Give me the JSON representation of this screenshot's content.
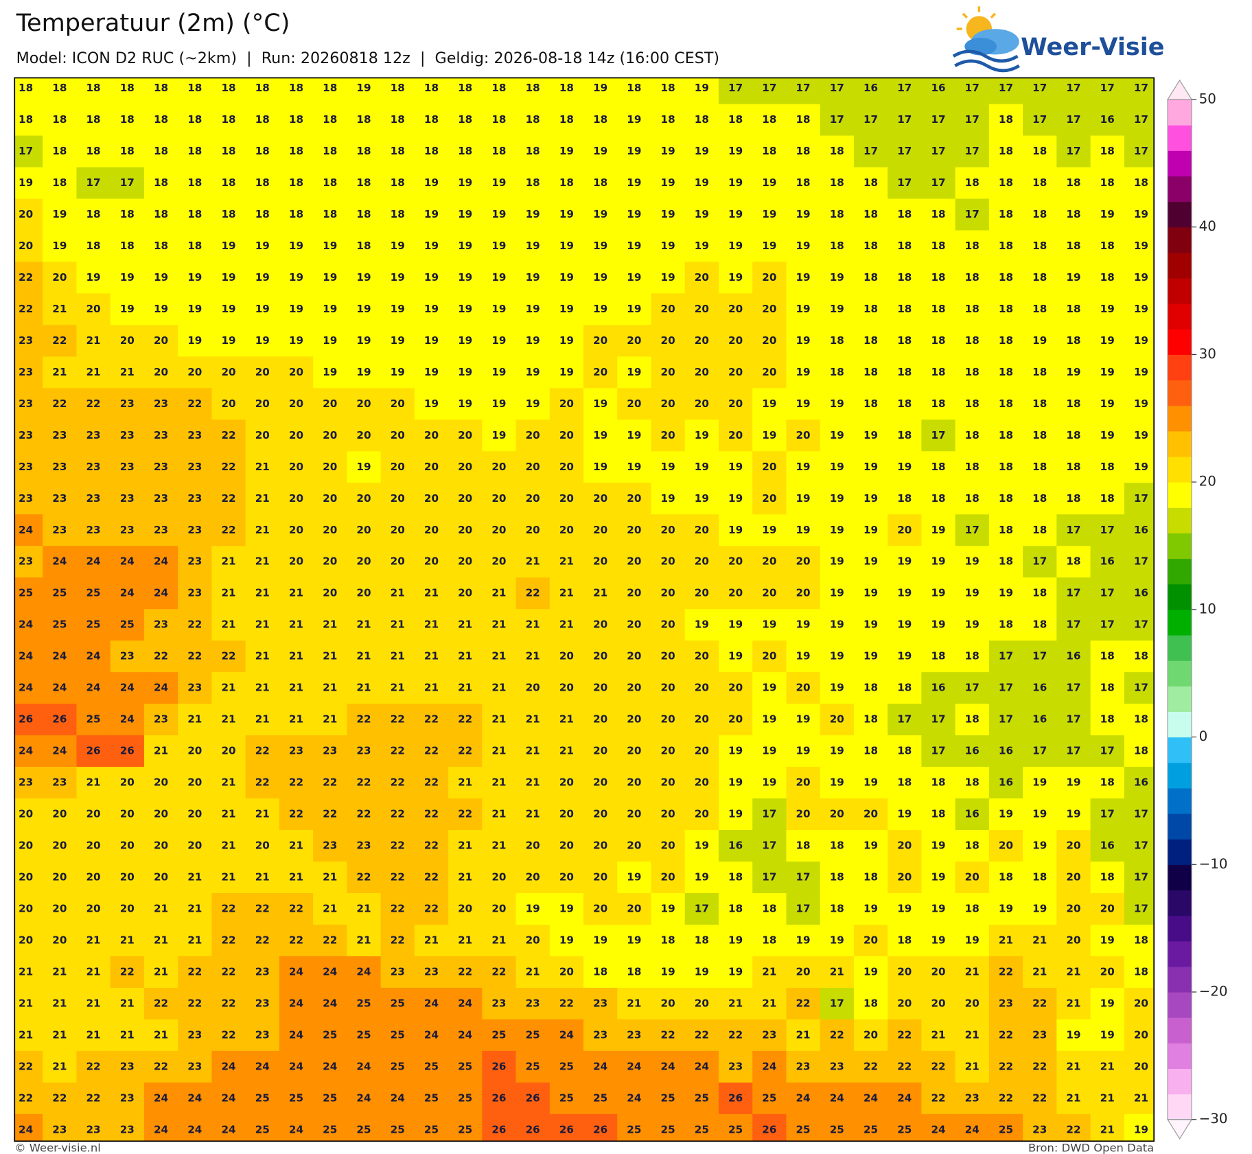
{
  "header": {
    "title": "Temperatuur (2m) (°C)",
    "subtitle": "Model: ICON D2 RUC (~2km)  |  Run: 20260818 12z  |  Geldig: 2026-08-18 14z (16:00 CEST)",
    "logo": "Weer-Visie"
  },
  "footer": {
    "left": "© Weer-visie.nl",
    "right": "Bron: DWD Open Data"
  },
  "colorbar": {
    "lim": [
      -30,
      50
    ],
    "ticks": [
      50,
      40,
      30,
      20,
      10,
      0,
      {
        "value": -10,
        "label": "−10"
      },
      {
        "value": -20,
        "label": "−20"
      },
      {
        "value": -30,
        "label": "−30"
      }
    ],
    "colors": [
      "#ffd8f6",
      "#f8b0ee",
      "#e080e0",
      "#c860d0",
      "#a848c0",
      "#8830b0",
      "#6a1aa0",
      "#480c88",
      "#2a0868",
      "#100048",
      "#002080",
      "#0048a8",
      "#0070c8",
      "#00a0e0",
      "#30c0f8",
      "#c8fcec",
      "#a0eca0",
      "#70d870",
      "#40c050",
      "#00b000",
      "#009000",
      "#30a800",
      "#80c800",
      "#c8dc00",
      "#ffff00",
      "#ffe000",
      "#ffc000",
      "#ff9000",
      "#ff6010",
      "#ff4010",
      "#ff0000",
      "#e00000",
      "#c00000",
      "#a00000",
      "#800010",
      "#500030",
      "#8a0068",
      "#c000b0",
      "#ff50e0",
      "#ffa8e0"
    ]
  },
  "grid": [
    [
      18,
      18,
      18,
      18,
      18,
      18,
      18,
      18,
      18,
      18,
      19,
      18,
      18,
      18,
      18,
      18,
      18,
      19,
      18,
      18,
      19,
      17,
      17,
      17,
      17,
      16,
      17,
      16,
      17,
      17,
      17,
      17,
      17,
      17
    ],
    [
      18,
      18,
      18,
      18,
      18,
      18,
      18,
      18,
      18,
      18,
      18,
      18,
      18,
      18,
      18,
      18,
      18,
      18,
      19,
      18,
      18,
      18,
      18,
      18,
      17,
      17,
      17,
      17,
      17,
      18,
      17,
      17,
      16,
      17
    ],
    [
      17,
      18,
      18,
      18,
      18,
      18,
      18,
      18,
      18,
      18,
      18,
      18,
      18,
      18,
      18,
      18,
      19,
      19,
      19,
      19,
      19,
      19,
      18,
      18,
      18,
      17,
      17,
      17,
      17,
      18,
      18,
      17,
      18,
      17
    ],
    [
      19,
      18,
      17,
      17,
      18,
      18,
      18,
      18,
      18,
      18,
      18,
      18,
      19,
      19,
      19,
      18,
      18,
      18,
      19,
      19,
      19,
      19,
      19,
      18,
      18,
      18,
      17,
      17,
      18,
      18,
      18,
      18,
      18,
      18
    ],
    [
      20,
      19,
      18,
      18,
      18,
      18,
      18,
      18,
      18,
      18,
      18,
      18,
      19,
      19,
      19,
      19,
      19,
      19,
      19,
      19,
      19,
      19,
      19,
      19,
      18,
      18,
      18,
      18,
      17,
      18,
      18,
      18,
      19,
      19
    ],
    [
      20,
      19,
      18,
      18,
      18,
      18,
      19,
      19,
      19,
      19,
      18,
      19,
      19,
      19,
      19,
      19,
      19,
      19,
      19,
      19,
      19,
      19,
      19,
      19,
      18,
      18,
      18,
      18,
      18,
      18,
      18,
      18,
      18,
      19
    ],
    [
      22,
      20,
      19,
      19,
      19,
      19,
      19,
      19,
      19,
      19,
      19,
      19,
      19,
      19,
      19,
      19,
      19,
      19,
      19,
      19,
      20,
      19,
      20,
      19,
      19,
      18,
      18,
      18,
      18,
      18,
      18,
      19,
      18,
      19
    ],
    [
      22,
      21,
      20,
      19,
      19,
      19,
      19,
      19,
      19,
      19,
      19,
      19,
      19,
      19,
      19,
      19,
      19,
      19,
      19,
      20,
      20,
      20,
      20,
      19,
      19,
      18,
      18,
      18,
      18,
      18,
      18,
      18,
      19,
      19
    ],
    [
      23,
      22,
      21,
      20,
      20,
      19,
      19,
      19,
      19,
      19,
      19,
      19,
      19,
      19,
      19,
      19,
      19,
      20,
      20,
      20,
      20,
      20,
      20,
      19,
      18,
      18,
      18,
      18,
      18,
      18,
      19,
      18,
      19,
      19
    ],
    [
      23,
      21,
      21,
      21,
      20,
      20,
      20,
      20,
      20,
      19,
      19,
      19,
      19,
      19,
      19,
      19,
      19,
      20,
      19,
      20,
      20,
      20,
      20,
      19,
      18,
      18,
      18,
      18,
      18,
      18,
      18,
      19,
      19,
      19
    ],
    [
      23,
      22,
      22,
      23,
      23,
      22,
      20,
      20,
      20,
      20,
      20,
      20,
      19,
      19,
      19,
      19,
      20,
      19,
      20,
      20,
      20,
      20,
      19,
      19,
      19,
      18,
      18,
      18,
      18,
      18,
      18,
      18,
      19,
      19
    ],
    [
      23,
      23,
      23,
      23,
      23,
      23,
      22,
      20,
      20,
      20,
      20,
      20,
      20,
      20,
      19,
      20,
      20,
      19,
      19,
      20,
      19,
      20,
      19,
      20,
      19,
      19,
      18,
      17,
      18,
      18,
      18,
      18,
      19,
      19
    ],
    [
      23,
      23,
      23,
      23,
      23,
      23,
      22,
      21,
      20,
      20,
      19,
      20,
      20,
      20,
      20,
      20,
      20,
      19,
      19,
      19,
      19,
      19,
      20,
      19,
      19,
      19,
      19,
      18,
      18,
      18,
      18,
      18,
      18,
      19
    ],
    [
      23,
      23,
      23,
      23,
      23,
      23,
      22,
      21,
      20,
      20,
      20,
      20,
      20,
      20,
      20,
      20,
      20,
      20,
      20,
      19,
      19,
      19,
      20,
      19,
      19,
      19,
      18,
      18,
      18,
      18,
      18,
      18,
      18,
      17
    ],
    [
      24,
      23,
      23,
      23,
      23,
      23,
      22,
      21,
      20,
      20,
      20,
      20,
      20,
      20,
      20,
      20,
      20,
      20,
      20,
      20,
      20,
      19,
      19,
      19,
      19,
      19,
      20,
      19,
      17,
      18,
      18,
      17,
      17,
      16
    ],
    [
      23,
      24,
      24,
      24,
      24,
      23,
      21,
      21,
      20,
      20,
      20,
      20,
      20,
      20,
      20,
      21,
      21,
      20,
      20,
      20,
      20,
      20,
      20,
      20,
      19,
      19,
      19,
      19,
      19,
      18,
      17,
      18,
      16,
      17
    ],
    [
      25,
      25,
      25,
      24,
      24,
      23,
      21,
      21,
      21,
      20,
      20,
      21,
      21,
      20,
      21,
      22,
      21,
      21,
      20,
      20,
      20,
      20,
      20,
      20,
      19,
      19,
      19,
      19,
      19,
      19,
      18,
      17,
      17,
      16
    ],
    [
      24,
      25,
      25,
      25,
      23,
      22,
      21,
      21,
      21,
      21,
      21,
      21,
      21,
      21,
      21,
      21,
      21,
      20,
      20,
      20,
      19,
      19,
      19,
      19,
      19,
      19,
      19,
      19,
      19,
      18,
      18,
      17,
      17,
      17
    ],
    [
      24,
      24,
      24,
      23,
      22,
      22,
      22,
      21,
      21,
      21,
      21,
      21,
      21,
      21,
      21,
      21,
      20,
      20,
      20,
      20,
      20,
      19,
      20,
      19,
      19,
      19,
      19,
      18,
      18,
      17,
      17,
      16,
      18,
      18
    ],
    [
      24,
      24,
      24,
      24,
      24,
      23,
      21,
      21,
      21,
      21,
      21,
      21,
      21,
      21,
      21,
      20,
      20,
      20,
      20,
      20,
      20,
      20,
      19,
      20,
      19,
      18,
      18,
      16,
      17,
      17,
      16,
      17,
      18,
      17
    ],
    [
      26,
      26,
      25,
      24,
      23,
      21,
      21,
      21,
      21,
      21,
      22,
      22,
      22,
      22,
      21,
      21,
      21,
      20,
      20,
      20,
      20,
      20,
      19,
      19,
      20,
      18,
      17,
      17,
      18,
      17,
      16,
      17,
      18,
      18
    ],
    [
      24,
      24,
      26,
      26,
      21,
      20,
      20,
      22,
      23,
      23,
      23,
      22,
      22,
      22,
      21,
      21,
      21,
      20,
      20,
      20,
      20,
      19,
      19,
      19,
      19,
      18,
      18,
      17,
      16,
      16,
      17,
      17,
      17,
      18
    ],
    [
      23,
      23,
      21,
      20,
      20,
      20,
      21,
      22,
      22,
      22,
      22,
      22,
      22,
      21,
      21,
      21,
      20,
      20,
      20,
      20,
      20,
      19,
      19,
      20,
      19,
      19,
      18,
      18,
      18,
      16,
      19,
      19,
      18,
      16
    ],
    [
      20,
      20,
      20,
      20,
      20,
      20,
      21,
      21,
      22,
      22,
      22,
      22,
      22,
      22,
      21,
      21,
      20,
      20,
      20,
      20,
      20,
      19,
      17,
      20,
      20,
      20,
      19,
      18,
      16,
      19,
      19,
      19,
      17,
      17
    ],
    [
      20,
      20,
      20,
      20,
      20,
      20,
      21,
      20,
      21,
      23,
      23,
      22,
      22,
      21,
      21,
      20,
      20,
      20,
      20,
      20,
      19,
      16,
      17,
      18,
      18,
      19,
      20,
      19,
      18,
      20,
      19,
      20,
      16,
      17
    ],
    [
      20,
      20,
      20,
      20,
      20,
      21,
      21,
      21,
      21,
      21,
      22,
      22,
      22,
      21,
      20,
      20,
      20,
      20,
      19,
      20,
      19,
      18,
      17,
      17,
      18,
      18,
      20,
      19,
      20,
      18,
      18,
      20,
      18,
      17
    ],
    [
      20,
      20,
      20,
      20,
      21,
      21,
      22,
      22,
      22,
      21,
      21,
      22,
      22,
      20,
      20,
      19,
      19,
      20,
      20,
      19,
      17,
      18,
      18,
      17,
      18,
      19,
      19,
      19,
      18,
      19,
      19,
      20,
      20,
      17
    ],
    [
      20,
      20,
      21,
      21,
      21,
      21,
      22,
      22,
      22,
      22,
      21,
      22,
      21,
      21,
      21,
      20,
      19,
      19,
      19,
      18,
      18,
      19,
      18,
      19,
      19,
      20,
      18,
      19,
      19,
      21,
      21,
      20,
      19,
      18
    ],
    [
      21,
      21,
      21,
      22,
      21,
      22,
      22,
      23,
      24,
      24,
      24,
      23,
      23,
      22,
      22,
      21,
      20,
      18,
      18,
      19,
      19,
      19,
      21,
      20,
      21,
      19,
      20,
      20,
      21,
      22,
      21,
      21,
      20,
      18
    ],
    [
      21,
      21,
      21,
      21,
      22,
      22,
      22,
      23,
      24,
      24,
      25,
      25,
      24,
      24,
      23,
      23,
      22,
      23,
      21,
      20,
      20,
      21,
      21,
      22,
      17,
      18,
      20,
      20,
      20,
      23,
      22,
      21,
      19,
      20
    ],
    [
      21,
      21,
      21,
      21,
      21,
      23,
      22,
      23,
      24,
      25,
      25,
      25,
      24,
      24,
      25,
      25,
      24,
      23,
      23,
      22,
      22,
      22,
      23,
      21,
      22,
      20,
      22,
      21,
      21,
      22,
      23,
      19,
      19,
      20
    ],
    [
      22,
      21,
      22,
      23,
      22,
      23,
      24,
      24,
      24,
      24,
      24,
      25,
      25,
      25,
      26,
      25,
      25,
      24,
      24,
      24,
      24,
      23,
      24,
      23,
      23,
      22,
      22,
      22,
      21,
      22,
      22,
      21,
      21,
      20
    ],
    [
      22,
      22,
      22,
      23,
      24,
      24,
      24,
      25,
      25,
      25,
      24,
      24,
      25,
      25,
      26,
      26,
      25,
      25,
      24,
      25,
      25,
      26,
      25,
      24,
      24,
      24,
      24,
      22,
      23,
      22,
      22,
      21,
      21,
      21
    ],
    [
      24,
      23,
      23,
      23,
      24,
      24,
      24,
      25,
      24,
      25,
      25,
      25,
      25,
      25,
      26,
      26,
      26,
      26,
      25,
      25,
      25,
      25,
      26,
      25,
      25,
      25,
      25,
      24,
      24,
      25,
      23,
      22,
      21,
      19
    ]
  ]
}
